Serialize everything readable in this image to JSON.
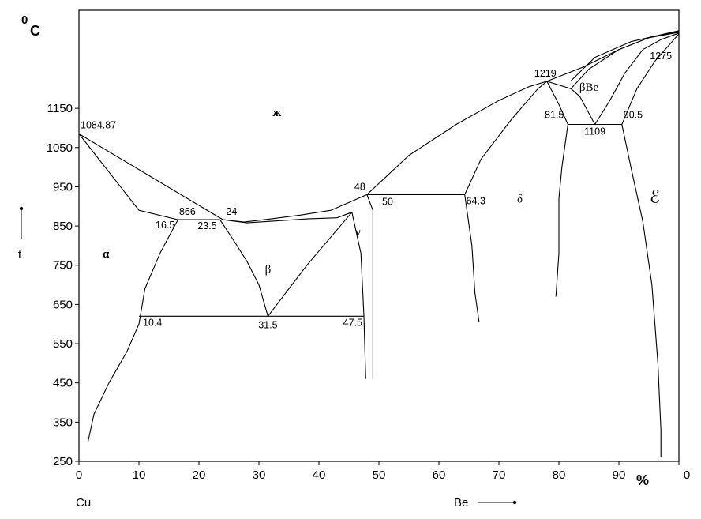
{
  "chart_data": {
    "type": "line",
    "title": "",
    "ylabel_unit": "C",
    "ylabel_degree": "0",
    "ylabel_var": "t",
    "xlabel_unit": "%",
    "x_left_label": "Cu",
    "x_right_label": "Be",
    "xlim": [
      0,
      100
    ],
    "ylim": [
      250,
      1400
    ],
    "x_ticks": [
      "0",
      "10",
      "20",
      "30",
      "40",
      "50",
      "60",
      "70",
      "80",
      "90",
      "0"
    ],
    "y_ticks": [
      "250",
      "350",
      "450",
      "550",
      "650",
      "750",
      "850",
      "950",
      "1050",
      "1150"
    ],
    "grid": false,
    "phase_labels": [
      {
        "text": "ж",
        "x": 33,
        "y": 1130
      },
      {
        "text": "α",
        "x": 4.5,
        "y": 770
      },
      {
        "text": "β",
        "x": 31.5,
        "y": 730
      },
      {
        "text": "γ",
        "x": 46.5,
        "y": 825
      },
      {
        "text": "δ",
        "x": 73.5,
        "y": 910
      },
      {
        "text": "βBe",
        "x": 85,
        "y": 1195
      },
      {
        "text": "ℰ",
        "x": 96,
        "y": 910
      }
    ],
    "point_labels": [
      {
        "text": "1084.87",
        "x": 0,
        "y": 1084.87
      },
      {
        "text": "866",
        "x": 16.5,
        "y": 866
      },
      {
        "text": "16.5",
        "x": 16.5,
        "y": 866
      },
      {
        "text": "23.5",
        "x": 23.5,
        "y": 866
      },
      {
        "text": "24",
        "x": 24,
        "y": 866
      },
      {
        "text": "48",
        "x": 48,
        "y": 930
      },
      {
        "text": "50",
        "x": 50,
        "y": 930
      },
      {
        "text": "64.3",
        "x": 64.3,
        "y": 930
      },
      {
        "text": "10.4",
        "x": 10.4,
        "y": 620
      },
      {
        "text": "31.5",
        "x": 31.5,
        "y": 620
      },
      {
        "text": "47.5",
        "x": 47.5,
        "y": 620
      },
      {
        "text": "1219",
        "x": 78,
        "y": 1219
      },
      {
        "text": "81.5",
        "x": 81.5,
        "y": 1109
      },
      {
        "text": "1109",
        "x": 86,
        "y": 1109
      },
      {
        "text": "90.5",
        "x": 90.5,
        "y": 1109
      },
      {
        "text": "1275",
        "x": 97,
        "y": 1275
      }
    ],
    "series": [
      {
        "values": [
          [
            0,
            1085
          ],
          [
            10,
            890
          ],
          [
            16.5,
            866
          ]
        ]
      },
      {
        "values": [
          [
            0,
            1085
          ],
          [
            24,
            866
          ]
        ]
      },
      {
        "values": [
          [
            1.5,
            300
          ],
          [
            2.5,
            370
          ],
          [
            5,
            450
          ],
          [
            8,
            530
          ],
          [
            10,
            600
          ],
          [
            11,
            690
          ],
          [
            13.5,
            780
          ],
          [
            16.5,
            866
          ]
        ]
      },
      {
        "values": [
          [
            16.5,
            866
          ],
          [
            23.5,
            866
          ]
        ]
      },
      {
        "values": [
          [
            24,
            866
          ],
          [
            27.5,
            860
          ],
          [
            32,
            868
          ],
          [
            37,
            878
          ],
          [
            42,
            890
          ],
          [
            48,
            930
          ]
        ]
      },
      {
        "values": [
          [
            24,
            866
          ],
          [
            28,
            858
          ],
          [
            38,
            868
          ],
          [
            43,
            871
          ],
          [
            45.5,
            885
          ]
        ]
      },
      {
        "values": [
          [
            23.5,
            866
          ],
          [
            25.5,
            820
          ],
          [
            28,
            760
          ],
          [
            30,
            700
          ],
          [
            31.5,
            620
          ]
        ]
      },
      {
        "values": [
          [
            31.5,
            620
          ],
          [
            38,
            750
          ],
          [
            45.5,
            885
          ]
        ]
      },
      {
        "values": [
          [
            10,
            620
          ],
          [
            47.5,
            620
          ]
        ]
      },
      {
        "values": [
          [
            45.5,
            885
          ],
          [
            47,
            780
          ],
          [
            47.5,
            620
          ],
          [
            47.8,
            460
          ]
        ]
      },
      {
        "values": [
          [
            48,
            930
          ],
          [
            50,
            930
          ]
        ]
      },
      {
        "values": [
          [
            48,
            930
          ],
          [
            49,
            890
          ],
          [
            49,
            460
          ]
        ]
      },
      {
        "values": [
          [
            48,
            930
          ],
          [
            55,
            1030
          ],
          [
            63,
            1110
          ],
          [
            70,
            1170
          ],
          [
            75,
            1205
          ],
          [
            78,
            1219
          ]
        ]
      },
      {
        "values": [
          [
            50,
            930
          ],
          [
            64.3,
            930
          ]
        ]
      },
      {
        "values": [
          [
            64.3,
            930
          ],
          [
            67,
            1020
          ],
          [
            72,
            1120
          ],
          [
            76.5,
            1200
          ],
          [
            78,
            1219
          ]
        ]
      },
      {
        "values": [
          [
            64.3,
            930
          ],
          [
            65.5,
            800
          ],
          [
            66,
            680
          ],
          [
            66.7,
            605
          ]
        ]
      },
      {
        "values": [
          [
            78,
            1219
          ],
          [
            80,
            1160
          ],
          [
            81.5,
            1109
          ],
          [
            80.5,
            1000
          ],
          [
            80,
            920
          ],
          [
            80,
            780
          ],
          [
            79.5,
            670
          ]
        ]
      },
      {
        "values": [
          [
            78,
            1219
          ],
          [
            82,
            1200
          ]
        ]
      },
      {
        "values": [
          [
            82,
            1200
          ],
          [
            83.5,
            1180
          ],
          [
            86,
            1109
          ]
        ]
      },
      {
        "values": [
          [
            81.5,
            1109
          ],
          [
            90.5,
            1109
          ]
        ]
      },
      {
        "values": [
          [
            86,
            1109
          ],
          [
            88.5,
            1170
          ],
          [
            91,
            1240
          ],
          [
            94,
            1300
          ],
          [
            97,
            1325
          ],
          [
            100,
            1342
          ]
        ]
      },
      {
        "values": [
          [
            78,
            1219
          ],
          [
            84,
            1255
          ],
          [
            90,
            1300
          ],
          [
            95,
            1330
          ],
          [
            100,
            1344
          ]
        ]
      },
      {
        "values": [
          [
            82,
            1200
          ],
          [
            85,
            1250
          ],
          [
            90,
            1300
          ],
          [
            95,
            1330
          ],
          [
            100,
            1346
          ]
        ]
      },
      {
        "values": [
          [
            82,
            1220
          ],
          [
            86,
            1280
          ],
          [
            92,
            1320
          ],
          [
            100,
            1348
          ]
        ]
      },
      {
        "values": [
          [
            90.5,
            1109
          ],
          [
            93,
            1200
          ],
          [
            96,
            1270
          ],
          [
            100,
            1340
          ]
        ]
      },
      {
        "values": [
          [
            90.5,
            1109
          ],
          [
            92,
            1000
          ],
          [
            94,
            860
          ],
          [
            95.5,
            700
          ],
          [
            96.5,
            500
          ],
          [
            97,
            330
          ],
          [
            97,
            260
          ]
        ]
      }
    ]
  }
}
